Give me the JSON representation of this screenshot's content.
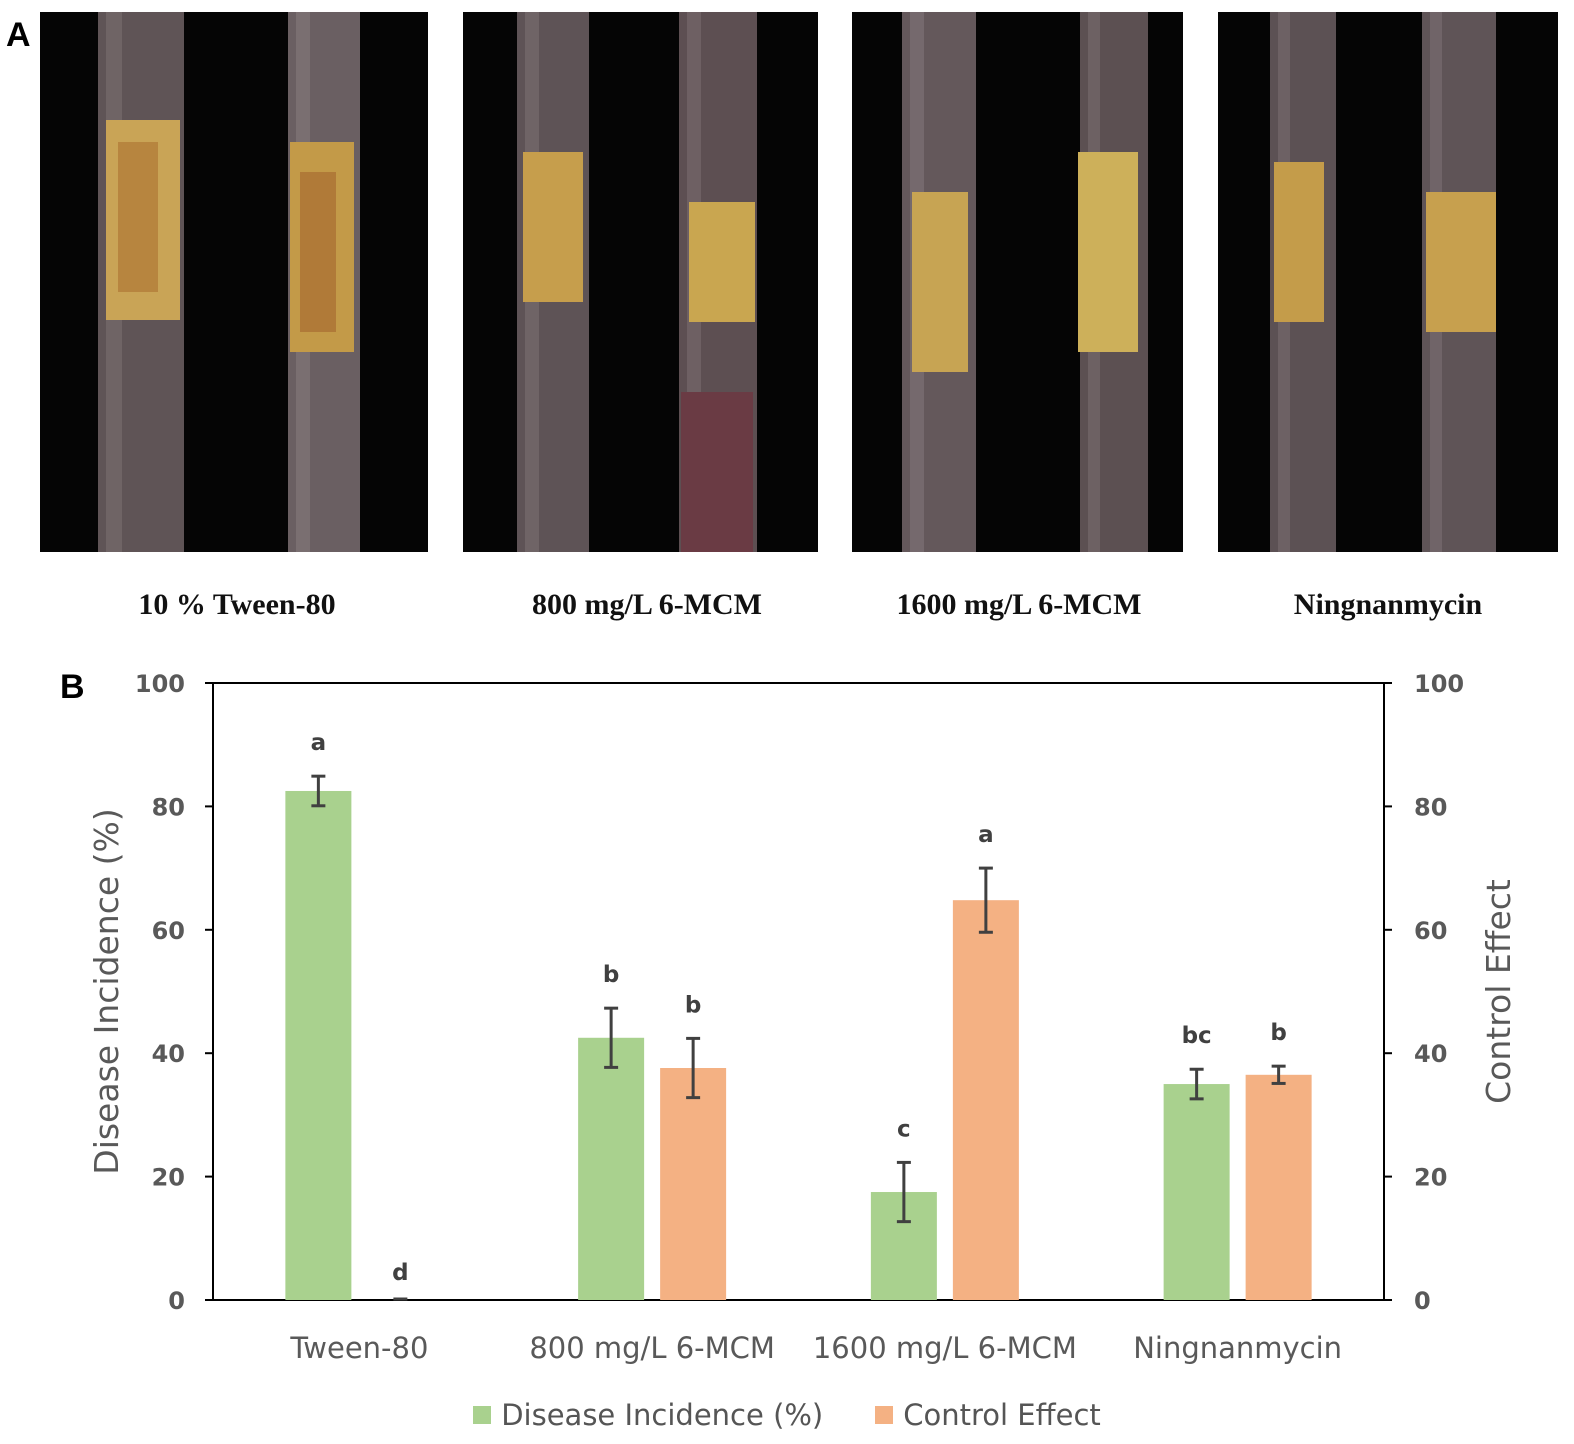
{
  "panel_a": {
    "letter": "A",
    "photos": [
      {
        "label": "10 % Tween-80"
      },
      {
        "label": "800 mg/L 6-MCM"
      },
      {
        "label": "1600 mg/L 6-MCM"
      },
      {
        "label": "Ningnanmycin"
      }
    ]
  },
  "panel_b": {
    "letter": "B"
  },
  "colors": {
    "disease": "#a9d18e",
    "control": "#f4b183",
    "axis": "#000000",
    "text": "#595959",
    "error": "#404040"
  },
  "chart_data": {
    "type": "bar",
    "categories": [
      "Tween-80",
      "800 mg/L 6-MCM",
      "1600 mg/L 6-MCM",
      "Ningnanmycin"
    ],
    "series": [
      {
        "name": "Disease Incidence (%)",
        "values": [
          82.5,
          42.5,
          17.5,
          35.0
        ],
        "errors": [
          2.4,
          4.8,
          4.8,
          2.4
        ],
        "letters": [
          "a",
          "b",
          "c",
          "bc"
        ]
      },
      {
        "name": "Control Effect",
        "values": [
          0,
          37.6,
          64.8,
          36.5
        ],
        "errors": [
          0,
          4.8,
          5.2,
          1.4
        ],
        "letters": [
          "d",
          "b",
          "a",
          "b"
        ]
      }
    ],
    "ylabel": "Disease Incidence (%)",
    "y2label": "Control Effect",
    "ylim": [
      0,
      100
    ],
    "y2lim": [
      0,
      100
    ],
    "yticks": [
      0,
      20,
      40,
      60,
      80,
      100
    ],
    "legend_position": "bottom-center"
  }
}
